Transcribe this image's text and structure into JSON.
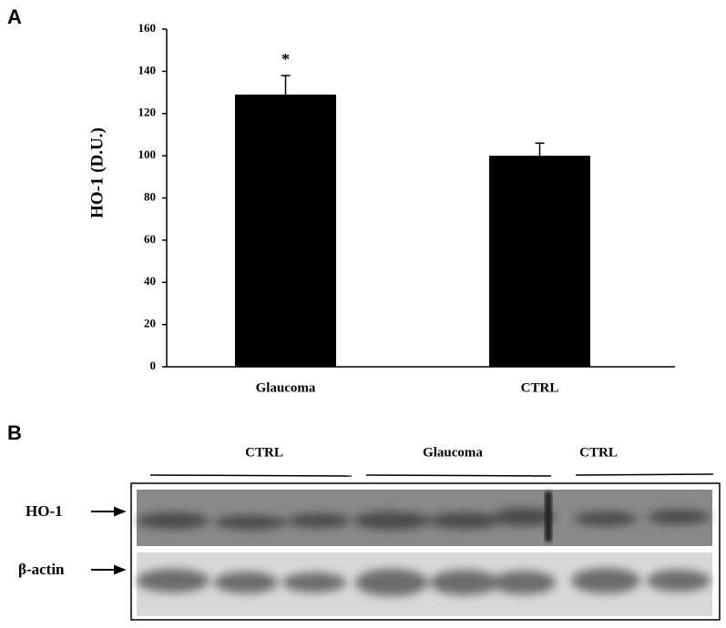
{
  "panels": [
    "A",
    "B"
  ],
  "chart_data": {
    "type": "bar",
    "ylabel": "HO-1  (D.U.)",
    "categories": [
      "Glaucoma",
      "CTRL"
    ],
    "values": [
      129,
      100
    ],
    "errors": [
      9,
      6
    ],
    "color": "#000000",
    "annotations": [
      {
        "text": "*",
        "x": "Glaucoma"
      }
    ],
    "ylim": [
      0,
      160
    ],
    "yticks": [
      0,
      20,
      40,
      60,
      80,
      100,
      120,
      140,
      160
    ]
  },
  "blot": {
    "group_labels": [
      "CTRL",
      "Glaucoma",
      "CTRL"
    ],
    "row_labels": [
      "HO-1",
      "β-actin"
    ]
  }
}
